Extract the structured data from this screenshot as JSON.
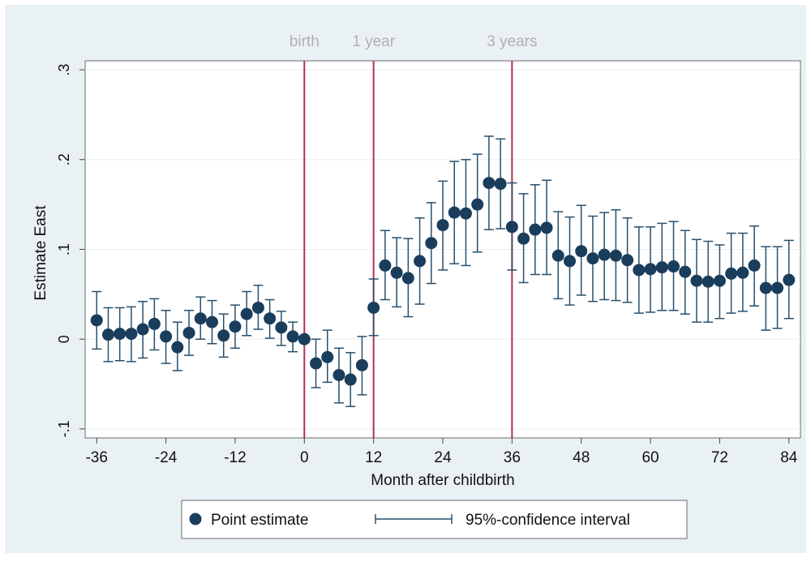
{
  "chart_data": {
    "type": "scatter",
    "xlabel": "Month after childbirth",
    "ylabel": "Estimate East",
    "xlim": [
      -38,
      86
    ],
    "ylim": [
      -0.11,
      0.31
    ],
    "xticks": [
      "-36",
      "-24",
      "-12",
      "0",
      "12",
      "24",
      "36",
      "48",
      "60",
      "72",
      "84"
    ],
    "xtick_values": [
      -36,
      -24,
      -12,
      0,
      12,
      24,
      36,
      48,
      60,
      72,
      84
    ],
    "yticks": [
      "-.1",
      "0",
      ".1",
      ".2",
      ".3"
    ],
    "ytick_values": [
      -0.1,
      0,
      0.1,
      0.2,
      0.3
    ],
    "grid": true,
    "legend_position": "bottom",
    "legend": {
      "point_label": "Point estimate",
      "ci_label": "95%-confidence interval"
    },
    "annotations": [
      {
        "x": 0,
        "label": "birth"
      },
      {
        "x": 12,
        "label": "1 year"
      },
      {
        "x": 36,
        "label": "3 years"
      }
    ],
    "colors": {
      "point": "#1a3d5c",
      "ci": "#27506e",
      "vline": "#b0305a",
      "annotation_text": "#b0b0b0",
      "background": "#eaf1f5",
      "grid": "#e8eef2"
    },
    "series": [
      {
        "x": [
          -36,
          -34,
          -32,
          -30,
          -28,
          -26,
          -24,
          -22,
          -20,
          -18,
          -16,
          -14,
          -12,
          -10,
          -8,
          -6,
          -4,
          -2,
          0,
          2,
          4,
          6,
          8,
          10,
          12,
          14,
          16,
          18,
          20,
          22,
          24,
          26,
          28,
          30,
          32,
          34,
          36,
          38,
          40,
          42,
          44,
          46,
          48,
          50,
          52,
          54,
          56,
          58,
          60,
          62,
          64,
          66,
          68,
          70,
          72,
          74,
          76,
          78,
          80,
          82,
          84
        ],
        "y": [
          0.021,
          0.005,
          0.006,
          0.006,
          0.011,
          0.017,
          0.003,
          -0.009,
          0.007,
          0.023,
          0.019,
          0.004,
          0.014,
          0.028,
          0.035,
          0.023,
          0.013,
          0.003,
          0.0,
          -0.027,
          -0.02,
          -0.04,
          -0.045,
          -0.029,
          0.035,
          0.082,
          0.074,
          0.068,
          0.087,
          0.107,
          0.127,
          0.141,
          0.14,
          0.15,
          0.174,
          0.173,
          0.125,
          0.112,
          0.122,
          0.124,
          0.093,
          0.087,
          0.098,
          0.09,
          0.094,
          0.093,
          0.088,
          0.077,
          0.078,
          0.08,
          0.081,
          0.075,
          0.065,
          0.064,
          0.065,
          0.073,
          0.074,
          0.082,
          0.057,
          0.057,
          0.066
        ],
        "lo": [
          -0.011,
          -0.025,
          -0.024,
          -0.025,
          -0.021,
          -0.012,
          -0.027,
          -0.035,
          -0.018,
          0.0,
          -0.005,
          -0.02,
          -0.01,
          0.004,
          0.011,
          0.001,
          -0.007,
          -0.014,
          -0.004,
          -0.054,
          -0.048,
          -0.071,
          -0.075,
          -0.062,
          0.004,
          0.044,
          0.036,
          0.025,
          0.039,
          0.062,
          0.077,
          0.084,
          0.082,
          0.097,
          0.122,
          0.123,
          0.077,
          0.063,
          0.072,
          0.072,
          0.045,
          0.038,
          0.049,
          0.042,
          0.044,
          0.043,
          0.041,
          0.029,
          0.03,
          0.032,
          0.032,
          0.028,
          0.019,
          0.019,
          0.023,
          0.029,
          0.031,
          0.037,
          0.01,
          0.012,
          0.023
        ],
        "hi": [
          0.053,
          0.035,
          0.035,
          0.036,
          0.042,
          0.045,
          0.032,
          0.019,
          0.032,
          0.047,
          0.043,
          0.028,
          0.038,
          0.053,
          0.06,
          0.044,
          0.031,
          0.019,
          0.003,
          0.0,
          0.01,
          -0.01,
          -0.015,
          0.003,
          0.067,
          0.121,
          0.113,
          0.112,
          0.135,
          0.152,
          0.176,
          0.198,
          0.2,
          0.206,
          0.226,
          0.223,
          0.174,
          0.162,
          0.172,
          0.177,
          0.142,
          0.136,
          0.149,
          0.137,
          0.141,
          0.144,
          0.135,
          0.125,
          0.125,
          0.129,
          0.131,
          0.121,
          0.111,
          0.109,
          0.105,
          0.118,
          0.118,
          0.126,
          0.103,
          0.103,
          0.11
        ]
      }
    ]
  }
}
